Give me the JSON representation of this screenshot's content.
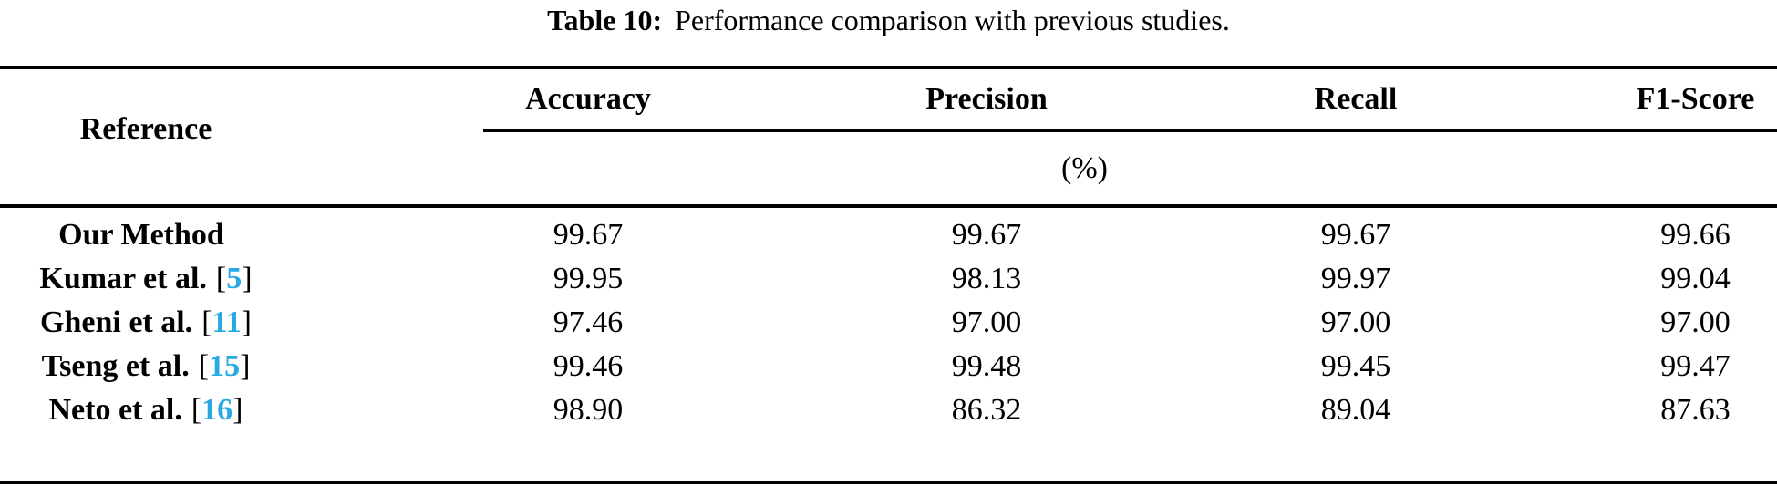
{
  "caption": {
    "label": "Table 10:",
    "text": "Performance comparison with previous studies."
  },
  "table": {
    "ref_header": "Reference",
    "metric_headers": [
      "Accuracy",
      "Precision",
      "Recall",
      "F1-Score"
    ],
    "unit_row": "(%)",
    "rows": [
      {
        "reference": "Our Method",
        "cite_open": "",
        "citation": "",
        "cite_close": "",
        "accuracy": "99.67",
        "precision": "99.67",
        "recall": "99.67",
        "f1": "99.66"
      },
      {
        "reference": "Kumar et al.",
        "cite_open": "[",
        "citation": "5",
        "cite_close": "]",
        "accuracy": "99.95",
        "precision": "98.13",
        "recall": "99.97",
        "f1": "99.04"
      },
      {
        "reference": "Gheni et al.",
        "cite_open": "[",
        "citation": "11",
        "cite_close": "]",
        "accuracy": "97.46",
        "precision": "97.00",
        "recall": "97.00",
        "f1": "97.00"
      },
      {
        "reference": "Tseng et al.",
        "cite_open": "[",
        "citation": "15",
        "cite_close": "]",
        "accuracy": "99.46",
        "precision": "99.48",
        "recall": "99.45",
        "f1": "99.47"
      },
      {
        "reference": "Neto et al.",
        "cite_open": "[",
        "citation": "16",
        "cite_close": "]",
        "accuracy": "98.90",
        "precision": "86.32",
        "recall": "89.04",
        "f1": "87.63"
      }
    ]
  },
  "colors": {
    "citation": "#29a9e1",
    "text": "#000000",
    "background": "#ffffff"
  }
}
